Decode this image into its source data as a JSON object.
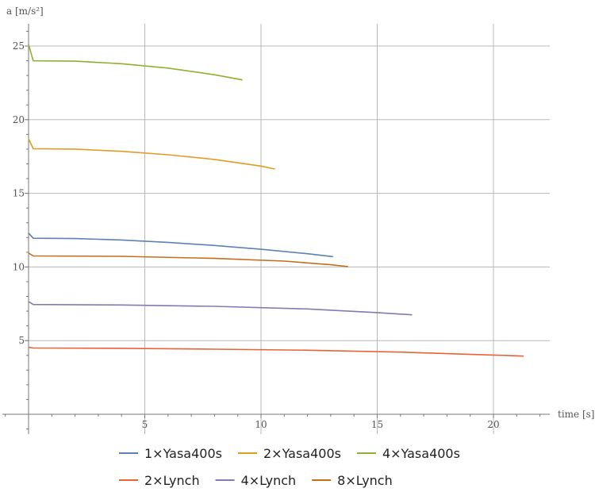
{
  "chart_data": {
    "type": "line",
    "title": "",
    "xlabel": "time [s]",
    "ylabel": "a [m/s²]",
    "xlim": [
      -1.2,
      22.5
    ],
    "ylim": [
      -1.5,
      26.5
    ],
    "xticks": [
      5,
      10,
      15,
      20
    ],
    "yticks": [
      5,
      10,
      15,
      20,
      25
    ],
    "grid": true,
    "legend_position": "bottom",
    "series": [
      {
        "name": "1×Yasa400s",
        "color": "#5e81b5",
        "x": [
          0,
          0.2,
          2,
          4,
          6,
          8,
          10,
          12,
          13.1
        ],
        "y": [
          12.3,
          11.95,
          11.93,
          11.83,
          11.67,
          11.46,
          11.2,
          10.9,
          10.7
        ]
      },
      {
        "name": "2×Yasa400s",
        "color": "#e19c24",
        "x": [
          0,
          0.2,
          2,
          4,
          6,
          8,
          10,
          10.6
        ],
        "y": [
          18.7,
          18.03,
          18.0,
          17.85,
          17.62,
          17.3,
          16.85,
          16.65
        ]
      },
      {
        "name": "4×Yasa400s",
        "color": "#8fb032",
        "x": [
          0,
          0.2,
          2,
          4,
          6,
          8,
          9.2
        ],
        "y": [
          25.1,
          24.0,
          23.97,
          23.8,
          23.5,
          23.05,
          22.7
        ]
      },
      {
        "name": "2×Lynch",
        "color": "#eb6235",
        "x": [
          0,
          0.2,
          4,
          8,
          12,
          16,
          20,
          21.3
        ],
        "y": [
          4.55,
          4.5,
          4.48,
          4.42,
          4.35,
          4.22,
          4.02,
          3.95
        ]
      },
      {
        "name": "4×Lynch",
        "color": "#8778b3",
        "x": [
          0,
          0.2,
          4,
          8,
          12,
          15,
          16.5
        ],
        "y": [
          7.65,
          7.45,
          7.42,
          7.33,
          7.15,
          6.9,
          6.75
        ]
      },
      {
        "name": "8×Lynch",
        "color": "#c56e1a",
        "x": [
          0,
          0.2,
          4,
          8,
          11,
          13,
          13.75
        ],
        "y": [
          10.95,
          10.75,
          10.72,
          10.58,
          10.4,
          10.15,
          10.02
        ]
      }
    ]
  },
  "legend_rows": [
    [
      0,
      1,
      2
    ],
    [
      3,
      4,
      5
    ]
  ]
}
